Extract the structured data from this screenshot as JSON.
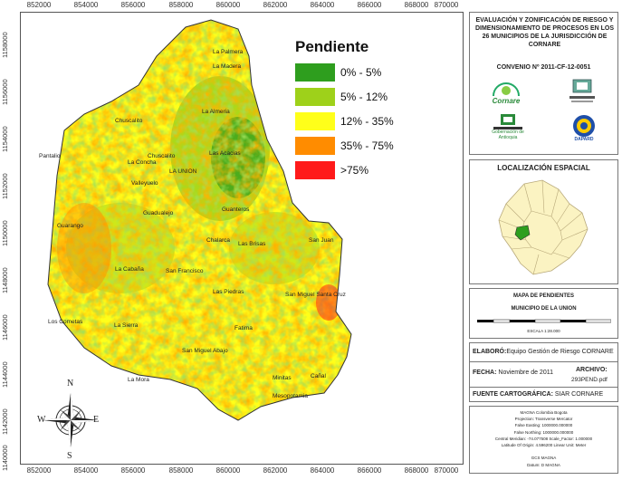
{
  "axes": {
    "x_ticks": [
      "852000",
      "854000",
      "856000",
      "858000",
      "860000",
      "862000",
      "864000",
      "866000",
      "868000",
      "870000"
    ],
    "y_ticks": [
      "1158000",
      "1156000",
      "1154000",
      "1152000",
      "1150000",
      "1148000",
      "1146000",
      "1144000",
      "1142000",
      "1140000"
    ]
  },
  "legend": {
    "title": "Pendiente",
    "items": [
      {
        "label": "0% - 5%",
        "color": "#2e9e1e"
      },
      {
        "label": "5% - 12%",
        "color": "#9ed11a"
      },
      {
        "label": "12% - 35%",
        "color": "#ffff1a"
      },
      {
        "label": "35% - 75%",
        "color": "#ff8c00"
      },
      {
        "label": ">75%",
        "color": "#ff1a1a"
      }
    ]
  },
  "places": [
    "La Palmera",
    "La Madera",
    "La Almeria",
    "Chuscalito",
    "Pantalio",
    "Chuscalito",
    "La Concha",
    "Las Acacias",
    "LA UNION",
    "Valleyuelo",
    "Guadualejo",
    "Guanteros",
    "Guarango",
    "Chalarca",
    "Las Brisas",
    "San Juan",
    "La Cabaña",
    "San Francisco",
    "Las Piedras",
    "San Miguel Santa Cruz",
    "Los Cometas",
    "La Sierra",
    "Fatima",
    "San Miguel Abajo",
    "La Mora",
    "Minitas",
    "Cañal",
    "Mesopotamia"
  ],
  "compass": {
    "n": "N",
    "s": "S",
    "e": "E",
    "w": "W"
  },
  "title_panel": {
    "title": "EVALUACIÓN Y ZONIFICACIÓN DE RIESGO Y DIMENSIONAMIENTO DE PROCESOS EN LOS 26 MUNICIPIOS DE LA JURISDICCIÓN DE CORNARE",
    "convenio": "CONVENIO Nº 2011-CF-12-0051",
    "logo1": "Cornare",
    "logo3": "Gobernación de Antioquia",
    "logo4": "DAPARD"
  },
  "localizacion": {
    "title": "LOCALIZACIÓN ESPACIAL"
  },
  "mapa": {
    "title": "MAPA DE PENDIENTES",
    "subtitle": "MUNICIPIO DE LA UNION",
    "escala": "ESCALA 1:28.000"
  },
  "info": {
    "elaboro_label": "ELABORÓ:",
    "elaboro_value": "Equipo Gestión de Riesgo CORNARE",
    "fecha_label": "FECHA:",
    "fecha_value": "Noviembre de 2011",
    "archivo_label": "ARCHIVO:",
    "archivo_value": "293PEND.pdf",
    "fuente_label": "FUENTE CARTOGRÁFICA:",
    "fuente_value": "SIAR CORNARE"
  },
  "projection": [
    "MAGNA Colombia Bogota",
    "Projection: Transverse Mercator",
    "False Easting: 1000000.000000",
    "False Northing: 1000000.000000",
    "Central Meridian: -74.077508   Scale_Factor: 1.000000",
    "Latitude Of Origin: 4.596200   Linear Unit: Meter",
    "",
    "GCS MAGNA",
    "Datum: D MAGNA"
  ]
}
